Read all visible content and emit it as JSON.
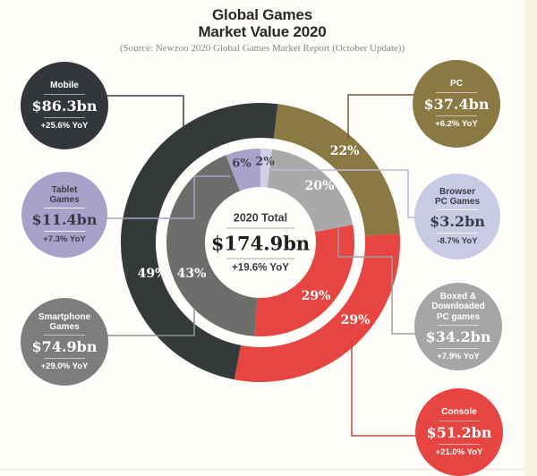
{
  "header": {
    "title_line1": "Global Games",
    "title_line2": "Market Value 2020",
    "source": "(Source: Newzoo 2020 Global Games Market Report (October Update))"
  },
  "chart_data": {
    "type": "pie",
    "variant": "two-ring donut",
    "title": "Global Games Market Value 2020",
    "legend_position": "callout-bubbles",
    "total": {
      "label": "2020 Total",
      "value_label": "$174.9bn",
      "value_bn": 174.9,
      "growth_label": "+19.6% YoY",
      "growth_yoy_pct": 19.6
    },
    "outer_ring": {
      "start_deg": 7.2,
      "segments": [
        {
          "name": "PC",
          "share_pct": 22,
          "share_label": "22%",
          "value_bn": 37.4,
          "value_label": "$37.4bn",
          "growth_label": "+6.2% YoY",
          "color": "#8b7943"
        },
        {
          "name": "Console",
          "share_pct": 29,
          "share_label": "29%",
          "value_bn": 51.2,
          "value_label": "$51.2bn",
          "growth_label": "+21.0% YoY",
          "color": "#e74541"
        },
        {
          "name": "Mobile",
          "share_pct": 49,
          "share_label": "49%",
          "value_bn": 86.3,
          "value_label": "$86.3bn",
          "growth_label": "+25.6% YoY",
          "color": "#343a3a"
        }
      ]
    },
    "inner_ring": {
      "start_deg": 0,
      "segments": [
        {
          "name": "Browser PC Games",
          "share_pct": 2,
          "share_label": "2%",
          "value_bn": 3.2,
          "value_label": "$3.2bn",
          "growth_label": "-8.7% YoY",
          "color": "#cfd0e4"
        },
        {
          "name": "Boxed & Downloaded PC games",
          "share_pct": 20,
          "share_label": "20%",
          "value_bn": 34.2,
          "value_label": "$34.2bn",
          "growth_label": "+7.9% YoY",
          "color": "#a9a9ab"
        },
        {
          "name": "Console",
          "share_pct": 29,
          "share_label": "29%",
          "value_bn": 51.2,
          "value_label": "$51.2bn",
          "growth_label": "+21.0% YoY",
          "color": "#e74541"
        },
        {
          "name": "Smartphone Games",
          "share_pct": 43,
          "share_label": "43%",
          "value_bn": 74.9,
          "value_label": "$74.9bn",
          "growth_label": "+29.0% YoY",
          "color": "#6c6e6b"
        },
        {
          "name": "Tablet Games",
          "share_pct": 6,
          "share_label": "6%",
          "value_bn": 11.4,
          "value_label": "$11.4bn",
          "growth_label": "+7.3% YoY",
          "color": "#a9a3cb"
        }
      ]
    }
  },
  "bubbles": {
    "mobile": {
      "title": "Mobile",
      "value": "$86.3bn",
      "growth": "+25.6% YoY",
      "color": "#33373b"
    },
    "tablet": {
      "title": "Tablet\nGames",
      "value": "$11.4bn",
      "growth": "+7.3% YoY",
      "color": "#a8a1ca"
    },
    "smartphone": {
      "title": "Smartphone\nGames",
      "value": "$74.9bn",
      "growth": "+29.0% YoY",
      "color": "#7b7e7c"
    },
    "pc": {
      "title": "PC",
      "value": "$37.4bn",
      "growth": "+6.2% YoY",
      "color": "#8b7943"
    },
    "browser": {
      "title": "Browser\nPC Games",
      "value": "$3.2bn",
      "growth": "-8.7% YoY",
      "color": "#c9cae3"
    },
    "boxed": {
      "title": "Boxed &\nDownloaded\nPC games",
      "value": "$34.2bn",
      "growth": "+7.9% YoY",
      "color": "#a5a5a7"
    },
    "console": {
      "title": "Console",
      "value": "$51.2bn",
      "growth": "+21.0% YoY",
      "color": "#e74541"
    }
  },
  "connectors": {
    "mobile": {
      "color": "#3f4245"
    },
    "tablet": {
      "color": "#a9a2cc"
    },
    "smartphone": {
      "color": "#909290"
    },
    "pc": {
      "color": "#6e5f33"
    },
    "browser": {
      "color": "#b9bad8"
    },
    "boxed": {
      "color": "#9d9ea0"
    },
    "console": {
      "color": "#cc4540"
    }
  }
}
